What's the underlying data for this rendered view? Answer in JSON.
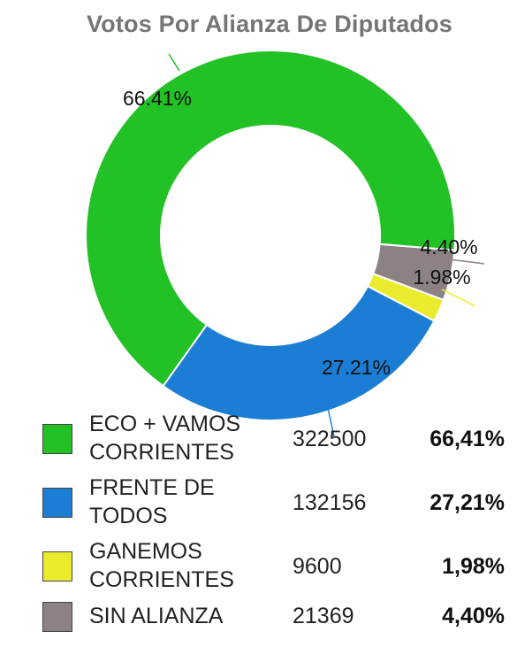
{
  "title": "Votos Por Alianza De Diputados",
  "chart_data": {
    "type": "pie",
    "title": "Votos Por Alianza De Diputados",
    "series": [
      {
        "name": "ECO + VAMOS CORRIENTES",
        "value": 322500,
        "percent": 66.41,
        "chart_label": "66.41%",
        "legend_percent": "66,41%",
        "color": "#22c126"
      },
      {
        "name": "FRENTE DE TODOS",
        "value": 132156,
        "percent": 27.21,
        "chart_label": "27.21%",
        "legend_percent": "27,21%",
        "color": "#1b7ed4"
      },
      {
        "name": "GANEMOS CORRIENTES",
        "value": 9600,
        "percent": 1.98,
        "chart_label": "1.98%",
        "legend_percent": "1,98%",
        "color": "#ebeb2e"
      },
      {
        "name": "SIN ALIANZA",
        "value": 21369,
        "percent": 4.4,
        "chart_label": "4.40%",
        "legend_percent": "4,40%",
        "color": "#8c8283"
      }
    ]
  },
  "legend": [
    {
      "name_line1": "ECO + VAMOS",
      "name_line2": "CORRIENTES",
      "votes": "322500",
      "percent": "66,41%",
      "color": "#22c126"
    },
    {
      "name_line1": "FRENTE DE",
      "name_line2": "TODOS",
      "votes": "132156",
      "percent": "27,21%",
      "color": "#1b7ed4"
    },
    {
      "name_line1": "GANEMOS",
      "name_line2": "CORRIENTES",
      "votes": "9600",
      "percent": "1,98%",
      "color": "#ebeb2e"
    },
    {
      "name_line1": "SIN ALIANZA",
      "name_line2": "",
      "votes": "21369",
      "percent": "4,40%",
      "color": "#8c8283"
    }
  ]
}
